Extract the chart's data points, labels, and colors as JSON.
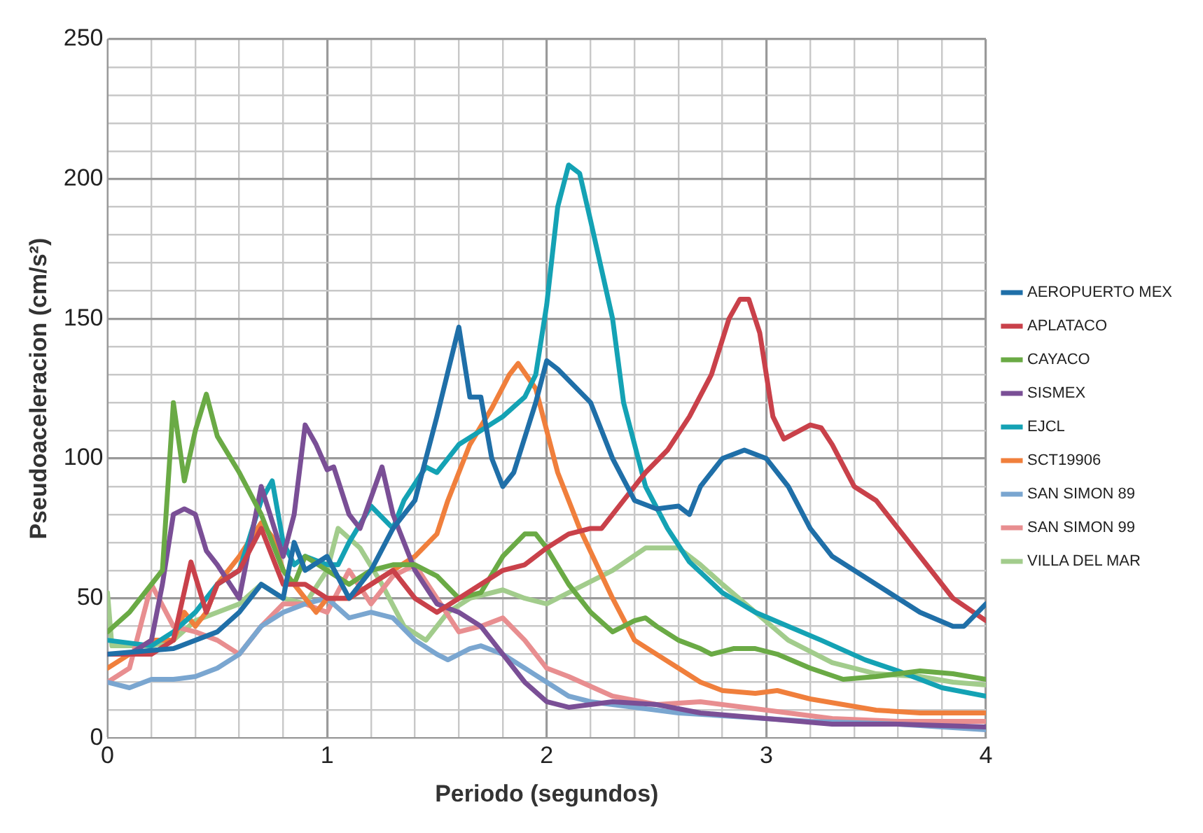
{
  "chart_data": {
    "type": "line",
    "xlabel": "Periodo (segundos)",
    "ylabel": "Pseudoaceleracion (cm/s²)",
    "xlim": [
      0,
      4
    ],
    "ylim": [
      0,
      250
    ],
    "xticks": [
      0,
      {
        "value": 0.2,
        "label": null
      },
      {
        "value": 0.4,
        "label": null
      },
      {
        "value": 0.6,
        "label": null
      },
      {
        "value": 0.8,
        "label": null
      },
      1,
      {
        "value": 1.2,
        "label": null
      },
      {
        "value": 1.4,
        "label": null
      },
      {
        "value": 1.6,
        "label": null
      },
      {
        "value": 1.8,
        "label": null
      },
      2,
      {
        "value": 2.2,
        "label": null
      },
      {
        "value": 2.4,
        "label": null
      },
      {
        "value": 2.6,
        "label": null
      },
      {
        "value": 2.8,
        "label": null
      },
      3,
      {
        "value": 3.2,
        "label": null
      },
      {
        "value": 3.4,
        "label": null
      },
      {
        "value": 3.6,
        "label": null
      },
      {
        "value": 3.8,
        "label": null
      },
      4
    ],
    "yticks": [
      0,
      {
        "value": 10,
        "label": null
      },
      {
        "value": 20,
        "label": null
      },
      {
        "value": 30,
        "label": null
      },
      {
        "value": 40,
        "label": null
      },
      50,
      {
        "value": 60,
        "label": null
      },
      {
        "value": 70,
        "label": null
      },
      {
        "value": 80,
        "label": null
      },
      {
        "value": 90,
        "label": null
      },
      100,
      {
        "value": 110,
        "label": null
      },
      {
        "value": 120,
        "label": null
      },
      {
        "value": 130,
        "label": null
      },
      {
        "value": 140,
        "label": null
      },
      150,
      {
        "value": 160,
        "label": null
      },
      {
        "value": 170,
        "label": null
      },
      {
        "value": 180,
        "label": null
      },
      {
        "value": 190,
        "label": null
      },
      200,
      {
        "value": 210,
        "label": null
      },
      {
        "value": 220,
        "label": null
      },
      {
        "value": 230,
        "label": null
      },
      {
        "value": 240,
        "label": null
      },
      250
    ],
    "grid": true,
    "legend": "right",
    "marker": "none",
    "line_style": "solid",
    "series": [
      {
        "name": "AEROPUERTO MEX",
        "color": "#1f6fa8",
        "x": [
          0,
          0.3,
          0.5,
          0.6,
          0.7,
          0.8,
          0.85,
          0.9,
          1.0,
          1.1,
          1.2,
          1.3,
          1.4,
          1.5,
          1.6,
          1.65,
          1.7,
          1.75,
          1.8,
          1.85,
          1.95,
          2.0,
          2.05,
          2.2,
          2.3,
          2.4,
          2.5,
          2.6,
          2.65,
          2.7,
          2.8,
          2.9,
          3.0,
          3.1,
          3.2,
          3.3,
          3.5,
          3.7,
          3.85,
          3.9,
          4.0
        ],
        "values": [
          30,
          32,
          38,
          45,
          55,
          50,
          70,
          60,
          65,
          50,
          60,
          75,
          85,
          115,
          147,
          122,
          122,
          100,
          90,
          95,
          120,
          135,
          132,
          120,
          100,
          85,
          82,
          83,
          80,
          90,
          100,
          103,
          100,
          90,
          75,
          65,
          55,
          45,
          40,
          40,
          48
        ]
      },
      {
        "name": "APLATACO",
        "color": "#c9414a",
        "x": [
          0,
          0.2,
          0.3,
          0.38,
          0.45,
          0.5,
          0.6,
          0.7,
          0.8,
          0.9,
          1.0,
          1.1,
          1.2,
          1.3,
          1.4,
          1.5,
          1.6,
          1.7,
          1.8,
          1.9,
          2.0,
          2.1,
          2.2,
          2.25,
          2.35,
          2.45,
          2.55,
          2.65,
          2.75,
          2.83,
          2.88,
          2.92,
          2.97,
          3.03,
          3.08,
          3.2,
          3.25,
          3.3,
          3.4,
          3.5,
          3.65,
          3.75,
          3.85,
          4.0
        ],
        "values": [
          30,
          30,
          35,
          63,
          45,
          55,
          60,
          75,
          55,
          55,
          50,
          50,
          55,
          60,
          50,
          45,
          50,
          55,
          60,
          62,
          68,
          73,
          75,
          75,
          85,
          95,
          103,
          115,
          130,
          150,
          157,
          157,
          145,
          115,
          107,
          112,
          111,
          105,
          90,
          85,
          70,
          60,
          50,
          42
        ]
      },
      {
        "name": "CAYACO",
        "color": "#6aaa45",
        "x": [
          0,
          0.1,
          0.2,
          0.25,
          0.3,
          0.35,
          0.4,
          0.45,
          0.5,
          0.6,
          0.7,
          0.8,
          0.85,
          0.9,
          1.0,
          1.1,
          1.2,
          1.3,
          1.4,
          1.5,
          1.6,
          1.7,
          1.8,
          1.9,
          1.95,
          2.0,
          2.1,
          2.2,
          2.3,
          2.4,
          2.45,
          2.5,
          2.6,
          2.7,
          2.75,
          2.85,
          2.95,
          3.05,
          3.2,
          3.35,
          3.5,
          3.7,
          3.85,
          4.0
        ],
        "values": [
          38,
          45,
          55,
          60,
          120,
          92,
          110,
          123,
          108,
          95,
          80,
          60,
          55,
          65,
          60,
          55,
          60,
          62,
          62,
          58,
          50,
          52,
          65,
          73,
          73,
          68,
          55,
          45,
          38,
          42,
          43,
          40,
          35,
          32,
          30,
          32,
          32,
          30,
          25,
          21,
          22,
          24,
          23,
          21
        ]
      },
      {
        "name": "SISMEX",
        "color": "#7a4f96",
        "x": [
          0,
          0.1,
          0.2,
          0.25,
          0.3,
          0.35,
          0.4,
          0.45,
          0.5,
          0.6,
          0.65,
          0.7,
          0.8,
          0.85,
          0.9,
          0.95,
          1.0,
          1.03,
          1.1,
          1.15,
          1.25,
          1.3,
          1.4,
          1.5,
          1.6,
          1.7,
          1.8,
          1.9,
          2.0,
          2.1,
          2.2,
          2.3,
          2.5,
          2.7,
          3.0,
          3.3,
          3.6,
          4.0
        ],
        "values": [
          30,
          30,
          35,
          55,
          80,
          82,
          80,
          67,
          62,
          50,
          70,
          90,
          65,
          80,
          112,
          105,
          96,
          97,
          80,
          75,
          97,
          80,
          60,
          48,
          45,
          40,
          30,
          20,
          13,
          11,
          12,
          13,
          12,
          9,
          7,
          5,
          5,
          4
        ]
      },
      {
        "name": "EJCL",
        "color": "#14a2b4",
        "x": [
          0,
          0.2,
          0.3,
          0.4,
          0.5,
          0.6,
          0.7,
          0.75,
          0.8,
          0.85,
          0.9,
          1.0,
          1.05,
          1.1,
          1.2,
          1.3,
          1.35,
          1.45,
          1.5,
          1.55,
          1.6,
          1.7,
          1.8,
          1.9,
          1.95,
          2.0,
          2.05,
          2.1,
          2.15,
          2.2,
          2.3,
          2.35,
          2.45,
          2.55,
          2.65,
          2.8,
          2.95,
          3.1,
          3.25,
          3.45,
          3.6,
          3.8,
          4.0
        ],
        "values": [
          35,
          33,
          38,
          45,
          55,
          60,
          85,
          92,
          70,
          62,
          65,
          62,
          62,
          70,
          83,
          75,
          85,
          97,
          95,
          100,
          105,
          110,
          115,
          122,
          130,
          155,
          190,
          205,
          202,
          185,
          150,
          120,
          90,
          75,
          63,
          52,
          45,
          40,
          35,
          28,
          24,
          18,
          15
        ]
      },
      {
        "name": "SCT19906",
        "color": "#f07f3c",
        "x": [
          0,
          0.1,
          0.2,
          0.3,
          0.35,
          0.4,
          0.45,
          0.5,
          0.6,
          0.7,
          0.75,
          0.8,
          0.85,
          0.9,
          0.95,
          1.0,
          1.1,
          1.2,
          1.3,
          1.4,
          1.5,
          1.55,
          1.65,
          1.75,
          1.83,
          1.87,
          1.95,
          2.05,
          2.15,
          2.3,
          2.4,
          2.5,
          2.6,
          2.7,
          2.8,
          2.95,
          3.05,
          3.2,
          3.35,
          3.5,
          3.7,
          4.0
        ],
        "values": [
          25,
          30,
          35,
          35,
          45,
          40,
          45,
          55,
          65,
          77,
          72,
          60,
          55,
          50,
          45,
          50,
          50,
          55,
          60,
          65,
          73,
          85,
          105,
          118,
          130,
          134,
          125,
          95,
          75,
          50,
          35,
          30,
          25,
          20,
          17,
          16,
          17,
          14,
          12,
          10,
          9,
          9
        ]
      },
      {
        "name": "SAN SIMON 89",
        "color": "#7aa6d0",
        "x": [
          0,
          0.1,
          0.2,
          0.3,
          0.4,
          0.5,
          0.6,
          0.7,
          0.8,
          0.9,
          1.0,
          1.1,
          1.2,
          1.3,
          1.4,
          1.5,
          1.55,
          1.65,
          1.7,
          1.8,
          1.9,
          2.0,
          2.1,
          2.2,
          2.4,
          2.6,
          2.8,
          3.0,
          3.2,
          3.6,
          4.0
        ],
        "values": [
          20,
          18,
          21,
          21,
          22,
          25,
          30,
          40,
          45,
          48,
          50,
          43,
          45,
          43,
          35,
          30,
          28,
          32,
          33,
          30,
          25,
          20,
          15,
          13,
          11,
          9,
          8,
          7,
          6,
          5,
          3
        ]
      },
      {
        "name": "SAN SIMON 99",
        "color": "#e88e90",
        "x": [
          0,
          0.1,
          0.2,
          0.3,
          0.4,
          0.5,
          0.6,
          0.7,
          0.8,
          0.9,
          1.0,
          1.1,
          1.2,
          1.3,
          1.4,
          1.5,
          1.6,
          1.7,
          1.8,
          1.9,
          2.0,
          2.1,
          2.3,
          2.5,
          2.7,
          2.9,
          3.1,
          3.3,
          3.6,
          4.0
        ],
        "values": [
          20,
          25,
          55,
          40,
          38,
          35,
          30,
          40,
          48,
          48,
          45,
          60,
          48,
          58,
          62,
          50,
          38,
          40,
          43,
          35,
          25,
          22,
          15,
          12,
          13,
          11,
          9,
          7,
          6,
          6
        ]
      },
      {
        "name": "VILLA DEL MAR",
        "color": "#a2cc8c",
        "x": [
          0,
          0.02,
          0.2,
          0.3,
          0.4,
          0.5,
          0.6,
          0.7,
          0.8,
          0.9,
          1.0,
          1.05,
          1.15,
          1.25,
          1.35,
          1.45,
          1.55,
          1.65,
          1.8,
          1.9,
          2.0,
          2.1,
          2.3,
          2.45,
          2.6,
          2.7,
          2.8,
          2.95,
          3.1,
          3.3,
          3.5,
          3.7,
          3.85,
          4.0
        ],
        "values": [
          52,
          33,
          33,
          35,
          42,
          45,
          48,
          55,
          50,
          48,
          60,
          75,
          68,
          55,
          40,
          35,
          45,
          50,
          53,
          50,
          48,
          52,
          60,
          68,
          68,
          62,
          55,
          45,
          35,
          27,
          23,
          22,
          20,
          19
        ]
      }
    ]
  }
}
